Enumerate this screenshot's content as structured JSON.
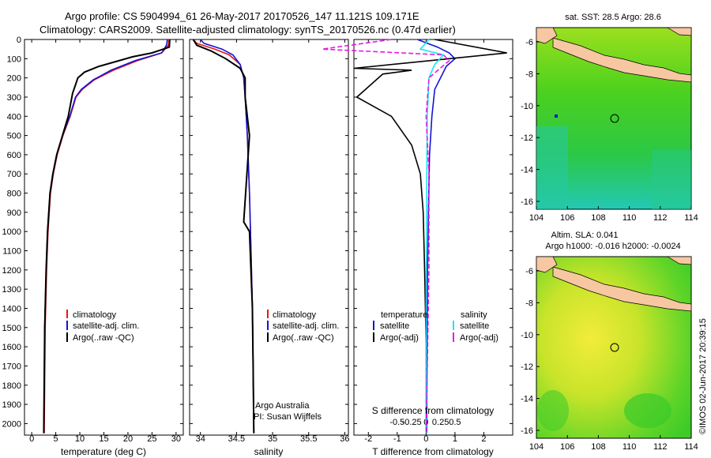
{
  "title_line1": "Argo profile: CS 5904994_61 26-May-2017 20170526_147 11.121S 109.171E",
  "title_line2": "Climatology: CARS2009. Satellite-adjusted climatology: synTS_20170526.nc (0.47d earlier)",
  "colors": {
    "climatology": "#e8141e",
    "satellite": "#1414d2",
    "argo": "#000000",
    "sat_salinity": "#19e6f0",
    "argo_salinity": "#e619e6",
    "land": "#f6c7a1"
  },
  "depth_axis": {
    "ticks": [
      "0",
      "100",
      "200",
      "300",
      "400",
      "500",
      "600",
      "700",
      "800",
      "900",
      "1000",
      "1100",
      "1200",
      "1300",
      "1400",
      "1500",
      "1600",
      "1700",
      "1800",
      "1900",
      "2000"
    ],
    "ylim": [
      0,
      2060
    ]
  },
  "chart_data": [
    {
      "type": "line",
      "xlabel": "temperature (deg C)",
      "xticks": [
        "0",
        "5",
        "10",
        "15",
        "20",
        "25",
        "30"
      ],
      "xlim": [
        -1.5,
        31.5
      ],
      "legend": [
        "climatology",
        "satellite-adj. clim.",
        "Argo(..raw -QC)"
      ],
      "series": [
        {
          "name": "climatology",
          "x": [
            28.5,
            28.4,
            27,
            22,
            17,
            13,
            10.5,
            9.2,
            8,
            6.5,
            5.3,
            4.5,
            3.9,
            3.4,
            3.1,
            2.8,
            2.6
          ],
          "y": [
            0,
            30,
            70,
            110,
            160,
            210,
            260,
            300,
            400,
            500,
            600,
            700,
            800,
            1000,
            1200,
            1500,
            2050
          ]
        },
        {
          "name": "satellite-adj. clim.",
          "x": [
            28.2,
            28.0,
            27,
            21.5,
            16.5,
            12.8,
            10.3,
            9.1,
            7.9,
            6.4,
            5.2,
            4.4,
            3.8,
            3.3,
            3.0,
            2.7,
            2.5
          ],
          "y": [
            0,
            30,
            70,
            110,
            160,
            210,
            260,
            300,
            400,
            500,
            600,
            700,
            800,
            1000,
            1200,
            1500,
            2050
          ]
        },
        {
          "name": "Argo(..raw -QC)",
          "x": [
            28.7,
            28.6,
            25,
            21,
            14,
            11,
            9.6,
            8.5,
            7.6,
            6.4,
            5.2,
            4.4,
            3.8,
            3.3,
            3.0,
            2.7,
            2.5
          ],
          "y": [
            0,
            40,
            70,
            90,
            140,
            170,
            200,
            280,
            400,
            500,
            600,
            700,
            800,
            1000,
            1200,
            1500,
            2050
          ]
        }
      ]
    },
    {
      "type": "line",
      "xlabel": "salinity",
      "xticks": [
        "34",
        "34.5",
        "35",
        "35.5",
        "36"
      ],
      "xlim": [
        33.85,
        36.05
      ],
      "legend": [
        "climatology",
        "satellite-adj. clim.",
        "Argo(..raw -QC)"
      ],
      "annotations": [
        "Argo Australia",
        "PI: Susan Wijffels"
      ],
      "series": [
        {
          "name": "climatology",
          "x": [
            33.9,
            33.95,
            34.2,
            34.4,
            34.55,
            34.6,
            34.62,
            34.65,
            34.68,
            34.7,
            34.72,
            34.73,
            34.74
          ],
          "y": [
            0,
            20,
            50,
            80,
            130,
            200,
            300,
            500,
            800,
            1100,
            1400,
            1700,
            2050
          ]
        },
        {
          "name": "satellite-adj. clim.",
          "x": [
            34.0,
            34.05,
            34.3,
            34.45,
            34.55,
            34.6,
            34.62,
            34.65,
            34.68,
            34.7,
            34.72,
            34.73,
            34.74
          ],
          "y": [
            0,
            20,
            50,
            80,
            130,
            200,
            300,
            500,
            800,
            1100,
            1400,
            1700,
            2050
          ]
        },
        {
          "name": "Argo(..raw -QC)",
          "x": [
            33.9,
            33.95,
            34.15,
            34.35,
            34.55,
            34.62,
            34.62,
            34.68,
            34.6,
            34.68,
            34.72,
            34.73,
            34.74
          ],
          "y": [
            0,
            30,
            60,
            100,
            150,
            200,
            300,
            500,
            950,
            1000,
            1400,
            1700,
            2050
          ]
        }
      ]
    },
    {
      "type": "line",
      "xlabel": "T difference from climatology",
      "xticks": [
        "-2",
        "-1",
        "0",
        "1",
        "2"
      ],
      "x2label": "S difference from climatology",
      "x2ticks": [
        "-0.5",
        "-0.25",
        "0",
        "0.25",
        "0.5"
      ],
      "xlim": [
        -2.5,
        3.0
      ],
      "legend_temperature_title": "temperature",
      "legend_salinity_title": "salinity",
      "legend": [
        "satellite",
        "Argo(-adj)",
        "satellite",
        "Argo(-adj)"
      ],
      "series": [
        {
          "name": "satellite",
          "x": [
            -0.3,
            0.4,
            0.8,
            1.0,
            0.7,
            0.5,
            0.3,
            0.2,
            0.12,
            0.08,
            0.05,
            0.03,
            0.02
          ],
          "y": [
            0,
            40,
            70,
            100,
            140,
            200,
            260,
            400,
            600,
            900,
            1200,
            1600,
            2050
          ]
        },
        {
          "name": "Argo(-adj)",
          "x": [
            0.3,
            2.8,
            -2.5,
            -0.5,
            -1.5,
            -2.4,
            -1.2,
            -0.5,
            -0.2,
            -0.1,
            -0.05,
            0.0,
            0.0
          ],
          "y": [
            0,
            70,
            150,
            160,
            180,
            300,
            400,
            550,
            700,
            900,
            1200,
            1600,
            2050
          ]
        },
        {
          "name": "satellite",
          "x": [
            0.05,
            -0.1,
            0.3,
            0.15,
            0.05,
            0.02,
            0.01,
            0.0,
            0.0
          ],
          "y": [
            0,
            50,
            80,
            130,
            200,
            400,
            800,
            1400,
            2050
          ]
        },
        {
          "name": "Argo(-adj)",
          "x": [
            -0.6,
            -1.8,
            0.3,
            0.4,
            0.05,
            0.0,
            0.05,
            0.05,
            0.0
          ],
          "y": [
            0,
            50,
            80,
            110,
            200,
            400,
            700,
            1200,
            2050
          ]
        }
      ]
    }
  ],
  "map_top": {
    "title": "sat. SST: 28.5 Argo: 28.6",
    "xticks": [
      "104",
      "106",
      "108",
      "110",
      "112",
      "114"
    ],
    "yticks": [
      "-6",
      "-8",
      "-10",
      "-12",
      "-14",
      "-16"
    ]
  },
  "map_bottom": {
    "title_line1": "Altim. SLA: 0.041",
    "title_line2": "Argo h1000: -0.016 h2000: -0.0024",
    "xticks": [
      "104",
      "106",
      "108",
      "110",
      "112",
      "114"
    ],
    "yticks": [
      "-6",
      "-8",
      "-10",
      "-12",
      "-14",
      "-16"
    ]
  },
  "side_text": "©IMOS 02-Jun-2017 20:39:15"
}
